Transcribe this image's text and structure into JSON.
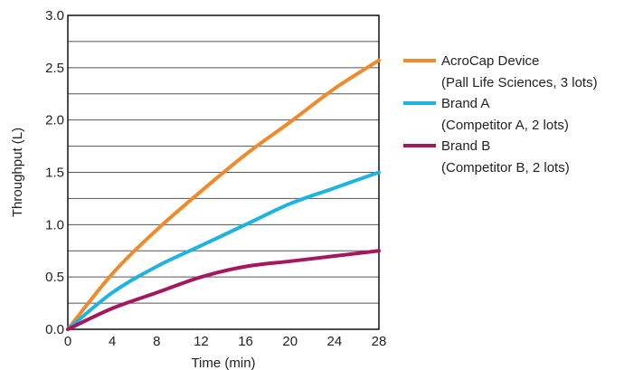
{
  "chart_data": {
    "type": "line",
    "xlabel": "Time (min)",
    "ylabel": "Throughput (L)",
    "xlim": [
      0,
      28
    ],
    "ylim": [
      0,
      3.0
    ],
    "x_ticks": [
      "0",
      "4",
      "8",
      "12",
      "16",
      "20",
      "24",
      "28"
    ],
    "y_ticks": [
      "0.0",
      "0.5",
      "1.0",
      "1.5",
      "2.0",
      "2.5",
      "3.0"
    ],
    "grid": "horizontal",
    "legend_position": "right",
    "series": [
      {
        "name": "AcroCap Device",
        "subtitle": "(Pall Life Sciences, 3 lots)",
        "color": "#f08a2c",
        "x": [
          0,
          4,
          8,
          12,
          16,
          20,
          24,
          28
        ],
        "y": [
          0.0,
          0.53,
          0.95,
          1.32,
          1.67,
          1.98,
          2.3,
          2.57
        ]
      },
      {
        "name": "Brand A",
        "subtitle": "(Competitor A, 2 lots)",
        "color": "#1fb3e0",
        "x": [
          0,
          4,
          8,
          12,
          16,
          20,
          24,
          28
        ],
        "y": [
          0.0,
          0.35,
          0.6,
          0.8,
          1.0,
          1.2,
          1.35,
          1.5
        ]
      },
      {
        "name": "Brand B",
        "subtitle": "(Competitor B, 2 lots)",
        "color": "#a3185f",
        "x": [
          0,
          4,
          8,
          12,
          16,
          20,
          24,
          28
        ],
        "y": [
          0.0,
          0.2,
          0.35,
          0.5,
          0.6,
          0.65,
          0.7,
          0.75
        ]
      }
    ]
  }
}
